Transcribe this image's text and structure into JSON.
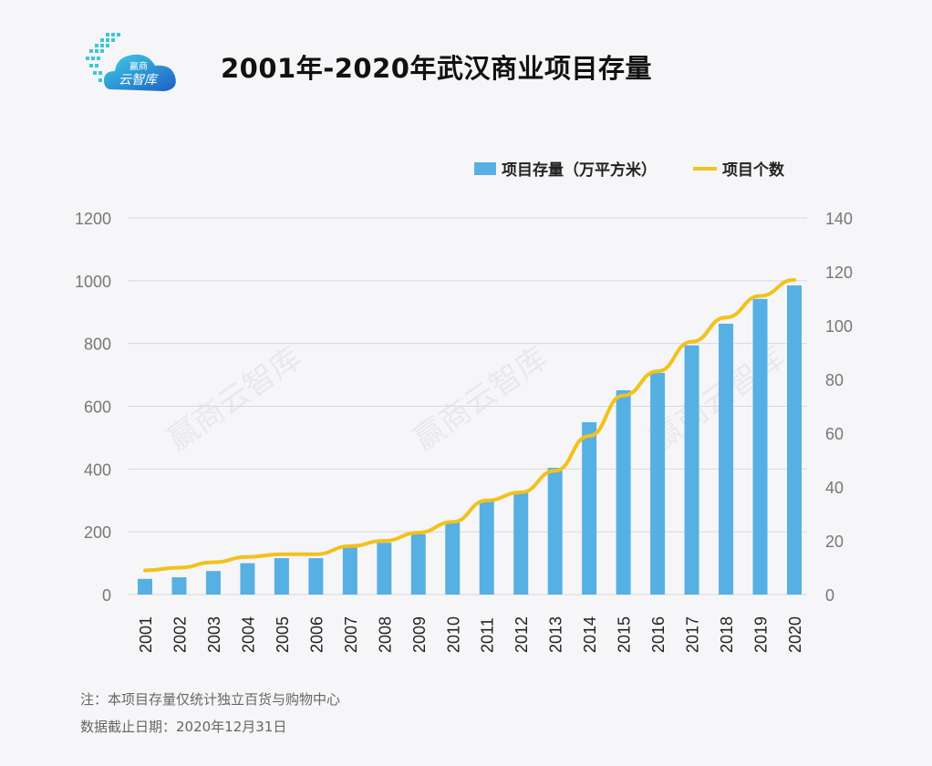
{
  "header": {
    "title": "2001年-2020年武汉商业项目存量",
    "logo_text_top": "赢商",
    "logo_text_bottom": "云智库"
  },
  "watermark": "赢商云智库",
  "chart_data": {
    "type": "bar+line",
    "title": "2001年-2020年武汉商业项目存量",
    "categories": [
      "2001",
      "2002",
      "2003",
      "2004",
      "2005",
      "2006",
      "2007",
      "2008",
      "2009",
      "2010",
      "2011",
      "2012",
      "2013",
      "2014",
      "2015",
      "2016",
      "2017",
      "2018",
      "2019",
      "2020"
    ],
    "series": [
      {
        "name": "项目存量（万平方米）",
        "type": "bar",
        "axis": "left",
        "color": "#56b0e3",
        "values": [
          50,
          55,
          75,
          100,
          116,
          116,
          157,
          165,
          192,
          232,
          300,
          328,
          404,
          549,
          651,
          706,
          794,
          863,
          942,
          985
        ]
      },
      {
        "name": "项目个数",
        "type": "line",
        "axis": "right",
        "color": "#f2c11c",
        "values": [
          9,
          10,
          12,
          14,
          15,
          15,
          18,
          20,
          23,
          27,
          35,
          38,
          46,
          59,
          74,
          83,
          94,
          103,
          111,
          117
        ]
      }
    ],
    "left_axis": {
      "ylim": [
        0,
        1200
      ],
      "ticks": [
        "0",
        "200",
        "400",
        "600",
        "800",
        "1000",
        "1200"
      ]
    },
    "right_axis": {
      "ylim": [
        0,
        140
      ],
      "ticks": [
        "0",
        "20",
        "40",
        "60",
        "80",
        "100",
        "120",
        "140"
      ]
    },
    "grid": true,
    "legend_position": "top-right"
  },
  "notes": [
    "注：本项目存量仅统计独立百货与购物中心",
    "数据截止日期：2020年12月31日"
  ]
}
